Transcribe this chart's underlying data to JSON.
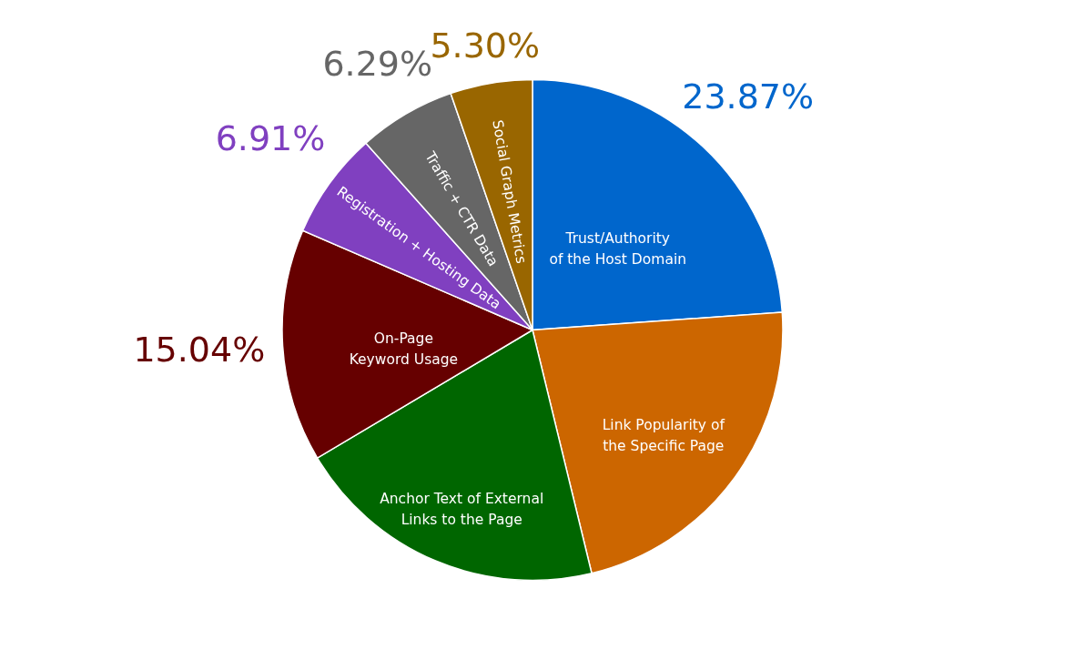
{
  "chart_data": {
    "type": "pie",
    "categories": [
      "Trust/Authority of the Host Domain",
      "Link Popularity of the Specific Page",
      "Anchor Text of External Links to the Page",
      "On-Page Keyword Usage",
      "Registration + Hosting Data",
      "Traffic + CTR Data",
      "Social Graph Metrics"
    ],
    "values": [
      23.87,
      22.33,
      20.26,
      15.04,
      6.91,
      6.29,
      5.3
    ],
    "colors": [
      "#0066cc",
      "#cc6600",
      "#006600",
      "#660000",
      "#8040c0",
      "#666666",
      "#996600"
    ],
    "value_labels": [
      "23.87%",
      null,
      null,
      "15.04%",
      "6.91%",
      "6.29%",
      "5.30%"
    ]
  }
}
